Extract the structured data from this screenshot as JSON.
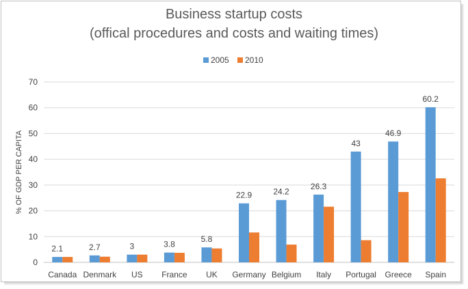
{
  "chart_data": {
    "type": "bar",
    "title_line1": "Business startup costs",
    "title_line2": "(offical procedures and costs and waiting times)",
    "xlabel": "",
    "ylabel": "% OF GDP PER CAPITA",
    "ylim": [
      0,
      70
    ],
    "yticks": [
      0,
      10,
      20,
      30,
      40,
      50,
      60,
      70
    ],
    "grid": true,
    "legend_position": "top-center",
    "categories": [
      "Canada",
      "Denmark",
      "US",
      "France",
      "UK",
      "Germany",
      "Belgium",
      "Italy",
      "Portugal",
      "Greece",
      "Spain"
    ],
    "series": [
      {
        "name": "2005",
        "color": "#5b9bd5",
        "values": [
          2.1,
          2.7,
          3,
          3.8,
          5.8,
          22.9,
          24.2,
          26.3,
          43,
          46.9,
          60.2
        ],
        "labels": [
          "2.1",
          "2.7",
          "3",
          "3.8",
          "5.8",
          "22.9",
          "24.2",
          "26.3",
          "43",
          "46.9",
          "60.2"
        ]
      },
      {
        "name": "2010",
        "color": "#ed7d31",
        "values": [
          2.1,
          2.2,
          3.0,
          3.7,
          5.4,
          11.6,
          6.9,
          21.6,
          8.6,
          27.3,
          32.6
        ]
      }
    ]
  }
}
